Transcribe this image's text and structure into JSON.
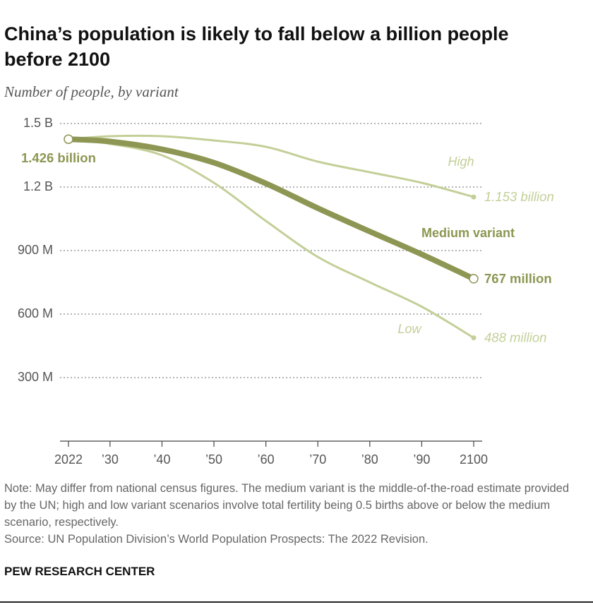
{
  "chart_data": {
    "type": "line",
    "title": "China’s population is likely to fall below a billion people before 2100",
    "subtitle": "Number of people, by variant",
    "x": [
      2022,
      2030,
      2040,
      2050,
      2060,
      2070,
      2080,
      2090,
      2100
    ],
    "xlim": [
      2022,
      2100
    ],
    "xticks": [
      2022,
      {
        "value": 2030,
        "label": "’30"
      },
      {
        "value": 2040,
        "label": "’40"
      },
      {
        "value": 2050,
        "label": "’50"
      },
      {
        "value": 2060,
        "label": "’60"
      },
      {
        "value": 2070,
        "label": "’70"
      },
      {
        "value": 2080,
        "label": "’80"
      },
      {
        "value": 2090,
        "label": "’90"
      },
      2100
    ],
    "ylim": [
      0,
      1500
    ],
    "yticks": [
      {
        "value": 300,
        "label": "300 M"
      },
      {
        "value": 600,
        "label": "600 M"
      },
      {
        "value": 900,
        "label": "900 M"
      },
      {
        "value": 1200,
        "label": "1.2 B"
      },
      {
        "value": 1500,
        "label": "1.5 B"
      }
    ],
    "grid": true,
    "series": [
      {
        "name": "High",
        "color": "#c3cf98",
        "values": [
          1426,
          1440,
          1440,
          1420,
          1390,
          1320,
          1270,
          1220,
          1153
        ],
        "value_labels": [
          null,
          null,
          null,
          null,
          null,
          null,
          null,
          null,
          "1.153 billion"
        ]
      },
      {
        "name": "Low",
        "color": "#c3cf98",
        "values": [
          1426,
          1404,
          1350,
          1220,
          1040,
          870,
          750,
          635,
          488
        ],
        "value_labels": [
          null,
          null,
          null,
          null,
          null,
          null,
          null,
          null,
          "488 million"
        ]
      },
      {
        "name": "Medium variant",
        "color": "#8d9652",
        "values": [
          1426,
          1415,
          1378,
          1315,
          1217,
          1100,
          990,
          882,
          767
        ],
        "value_labels": [
          "1.426 billion",
          null,
          null,
          null,
          null,
          null,
          null,
          null,
          "767 million"
        ]
      }
    ],
    "note": "Note: May differ from national census figures. The medium variant is the middle-of-the-road estimate provided by the UN; high and low variant scenarios involve total fertility being 0.5 births above or below the medium scenario, respectively.",
    "source": "Source: UN Population Division’s World Population Prospects: The 2022 Revision.",
    "footer": "PEW RESEARCH CENTER"
  }
}
